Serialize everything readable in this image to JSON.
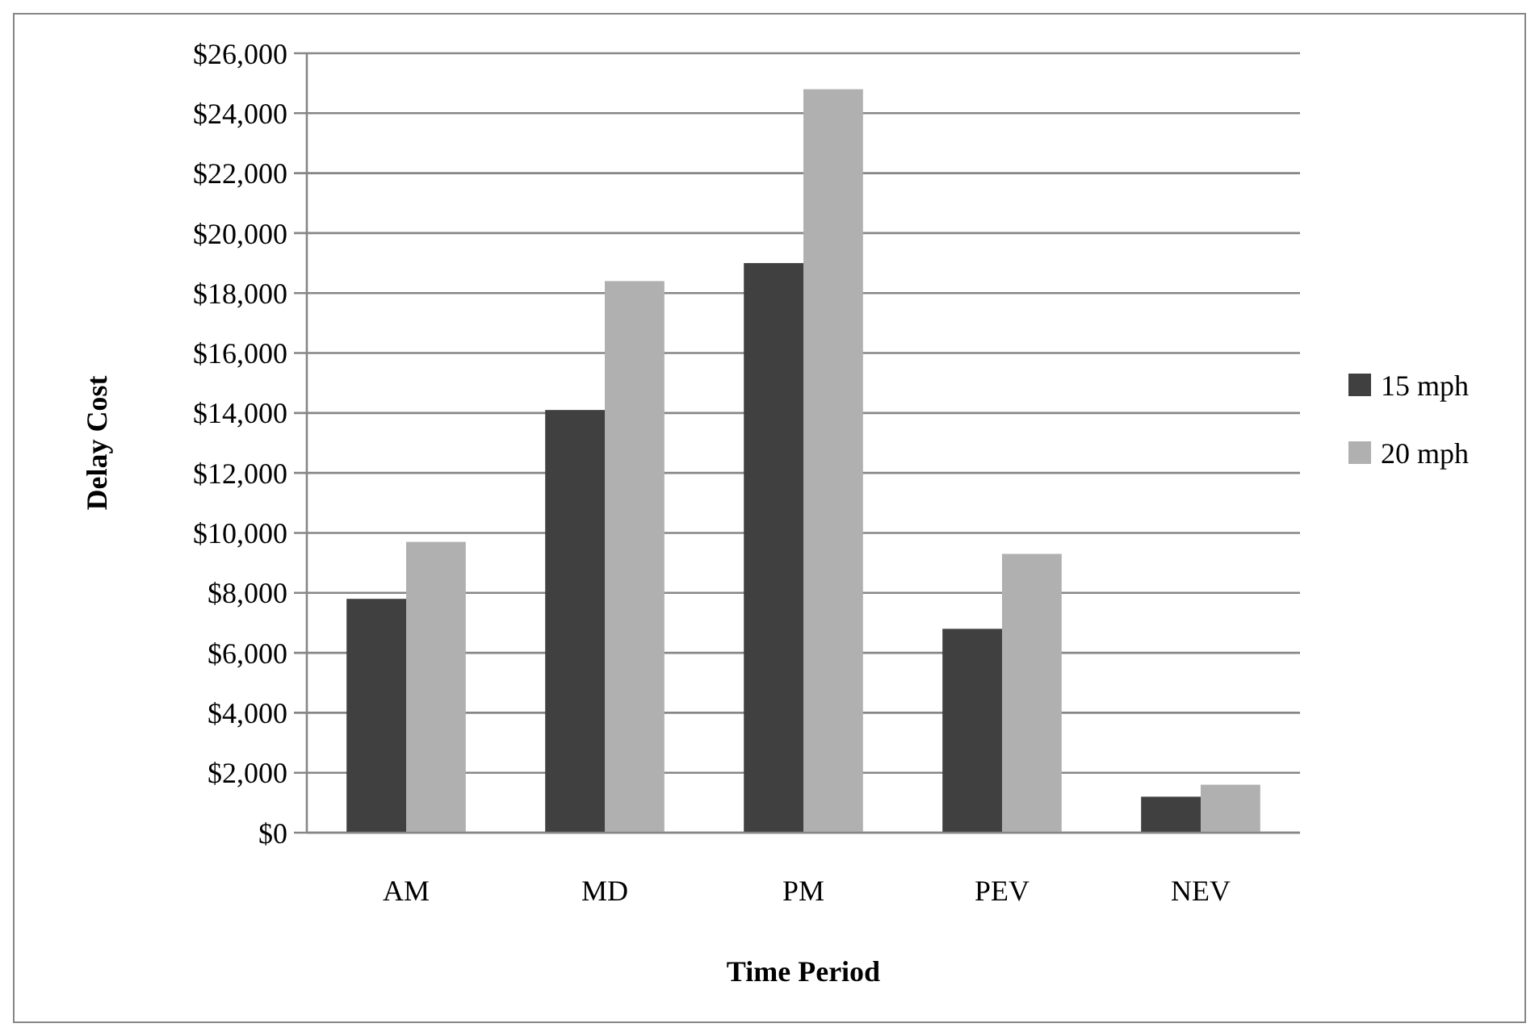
{
  "chart_data": {
    "type": "bar",
    "xlabel": "Time Period",
    "ylabel": "Delay Cost",
    "categories": [
      "AM",
      "MD",
      "PM",
      "PEV",
      "NEV"
    ],
    "series": [
      {
        "name": "15 mph",
        "color": "#404040",
        "values": [
          7800,
          14100,
          19000,
          6800,
          1200
        ]
      },
      {
        "name": "20 mph",
        "color": "#b0b0b0",
        "values": [
          9700,
          18400,
          24800,
          9300,
          1600
        ]
      }
    ],
    "ylim": [
      0,
      26000
    ],
    "yticks": [
      {
        "value": 0,
        "label": "$0"
      },
      {
        "value": 2000,
        "label": "$2,000"
      },
      {
        "value": 4000,
        "label": "$4,000"
      },
      {
        "value": 6000,
        "label": "$6,000"
      },
      {
        "value": 8000,
        "label": "$8,000"
      },
      {
        "value": 10000,
        "label": "$10,000"
      },
      {
        "value": 12000,
        "label": "$12,000"
      },
      {
        "value": 14000,
        "label": "$14,000"
      },
      {
        "value": 16000,
        "label": "$16,000"
      },
      {
        "value": 18000,
        "label": "$18,000"
      },
      {
        "value": 20000,
        "label": "$20,000"
      },
      {
        "value": 22000,
        "label": "$22,000"
      },
      {
        "value": 24000,
        "label": "$24,000"
      },
      {
        "value": 26000,
        "label": "$26,000"
      }
    ],
    "grid": "y",
    "legend": "right"
  }
}
